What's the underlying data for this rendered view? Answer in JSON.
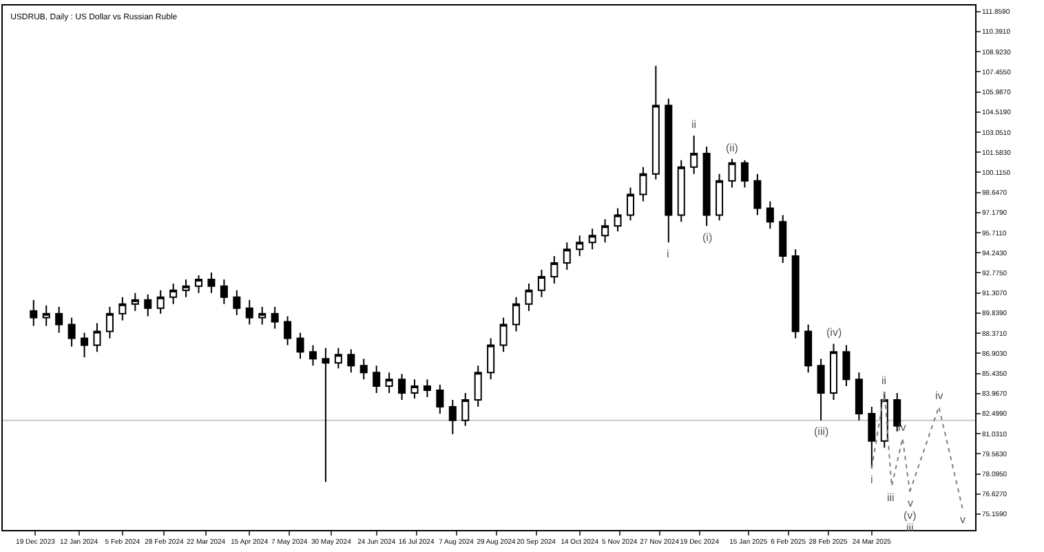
{
  "chart_data": {
    "type": "candlestick",
    "title": "USDRUB, Daily : US Dollar vs Russian Ruble",
    "x": [
      "2023-12-18",
      "2023-12-25",
      "2024-01-01",
      "2024-01-08",
      "2024-01-15",
      "2024-01-22",
      "2024-01-29",
      "2024-02-05",
      "2024-02-12",
      "2024-02-19",
      "2024-02-26",
      "2024-03-04",
      "2024-03-11",
      "2024-03-18",
      "2024-03-25",
      "2024-04-01",
      "2024-04-08",
      "2024-04-15",
      "2024-04-22",
      "2024-04-29",
      "2024-05-06",
      "2024-05-13",
      "2024-05-20",
      "2024-05-27",
      "2024-06-03",
      "2024-06-10",
      "2024-06-17",
      "2024-06-24",
      "2024-07-01",
      "2024-07-08",
      "2024-07-15",
      "2024-07-22",
      "2024-07-29",
      "2024-08-05",
      "2024-08-12",
      "2024-08-19",
      "2024-08-26",
      "2024-09-02",
      "2024-09-09",
      "2024-09-16",
      "2024-09-23",
      "2024-09-30",
      "2024-10-07",
      "2024-10-14",
      "2024-10-21",
      "2024-10-28",
      "2024-11-04",
      "2024-11-11",
      "2024-11-18",
      "2024-11-25",
      "2024-12-02",
      "2024-12-09",
      "2024-12-16",
      "2024-12-23",
      "2024-12-30",
      "2025-01-06",
      "2025-01-13",
      "2025-01-20",
      "2025-01-27",
      "2025-02-03",
      "2025-02-10",
      "2025-02-17",
      "2025-02-24",
      "2025-03-03",
      "2025-03-10",
      "2025-03-17",
      "2025-03-24",
      "2025-03-31",
      "2025-04-07"
    ],
    "ohlc": [
      [
        90.0,
        90.8,
        88.9,
        89.5
      ],
      [
        89.5,
        90.4,
        88.9,
        89.8
      ],
      [
        89.8,
        90.3,
        88.4,
        89.0
      ],
      [
        89.0,
        89.5,
        87.4,
        88.0
      ],
      [
        88.0,
        88.4,
        86.6,
        87.5
      ],
      [
        87.5,
        89.1,
        87.0,
        88.5
      ],
      [
        88.5,
        90.3,
        88.0,
        89.8
      ],
      [
        89.8,
        91.0,
        89.3,
        90.5
      ],
      [
        90.5,
        91.3,
        90.0,
        90.8
      ],
      [
        90.8,
        91.2,
        89.6,
        90.2
      ],
      [
        90.2,
        91.5,
        89.8,
        91.0
      ],
      [
        91.0,
        92.0,
        90.5,
        91.5
      ],
      [
        91.5,
        92.3,
        91.0,
        91.8
      ],
      [
        91.8,
        92.6,
        91.3,
        92.3
      ],
      [
        92.3,
        92.8,
        91.3,
        91.8
      ],
      [
        91.8,
        92.3,
        90.5,
        91.0
      ],
      [
        91.0,
        91.5,
        89.7,
        90.2
      ],
      [
        90.2,
        90.8,
        89.0,
        89.5
      ],
      [
        89.5,
        90.3,
        89.0,
        89.8
      ],
      [
        89.8,
        90.3,
        88.7,
        89.2
      ],
      [
        89.2,
        89.6,
        87.5,
        88.0
      ],
      [
        88.0,
        88.4,
        86.5,
        87.0
      ],
      [
        87.0,
        87.5,
        86.0,
        86.5
      ],
      [
        86.5,
        87.3,
        77.5,
        86.2
      ],
      [
        86.2,
        87.3,
        85.8,
        86.8
      ],
      [
        86.8,
        87.2,
        85.5,
        86.0
      ],
      [
        86.0,
        86.5,
        85.0,
        85.5
      ],
      [
        85.5,
        86.0,
        84.0,
        84.5
      ],
      [
        84.5,
        85.5,
        84.0,
        85.0
      ],
      [
        85.0,
        85.4,
        83.5,
        84.0
      ],
      [
        84.0,
        85.0,
        83.6,
        84.5
      ],
      [
        84.5,
        85.0,
        83.7,
        84.2
      ],
      [
        84.2,
        84.6,
        82.5,
        83.0
      ],
      [
        83.0,
        83.5,
        81.0,
        82.0
      ],
      [
        82.0,
        84.0,
        81.6,
        83.5
      ],
      [
        83.5,
        86.0,
        83.0,
        85.5
      ],
      [
        85.5,
        88.0,
        85.0,
        87.5
      ],
      [
        87.5,
        89.5,
        87.0,
        89.0
      ],
      [
        89.0,
        91.0,
        88.5,
        90.5
      ],
      [
        90.5,
        92.0,
        90.0,
        91.5
      ],
      [
        91.5,
        93.0,
        91.0,
        92.5
      ],
      [
        92.5,
        94.0,
        92.0,
        93.5
      ],
      [
        93.5,
        95.0,
        93.0,
        94.5
      ],
      [
        94.5,
        95.5,
        94.0,
        95.0
      ],
      [
        95.0,
        96.0,
        94.5,
        95.5
      ],
      [
        95.5,
        96.7,
        95.0,
        96.2
      ],
      [
        96.2,
        97.5,
        95.8,
        97.0
      ],
      [
        97.0,
        99.0,
        96.6,
        98.5
      ],
      [
        98.5,
        100.5,
        98.0,
        100.0
      ],
      [
        100.0,
        107.9,
        99.6,
        105.0
      ],
      [
        105.0,
        105.5,
        95.0,
        97.0
      ],
      [
        97.0,
        101.0,
        96.5,
        100.5
      ],
      [
        100.5,
        102.8,
        100.0,
        101.5
      ],
      [
        101.5,
        102.0,
        96.2,
        97.0
      ],
      [
        97.0,
        100.0,
        96.6,
        99.5
      ],
      [
        99.5,
        101.1,
        99.0,
        100.8
      ],
      [
        100.8,
        101.0,
        99.0,
        99.5
      ],
      [
        99.5,
        100.0,
        97.0,
        97.5
      ],
      [
        97.5,
        98.0,
        96.0,
        96.5
      ],
      [
        96.5,
        97.0,
        93.5,
        94.0
      ],
      [
        94.0,
        94.5,
        88.0,
        88.5
      ],
      [
        88.5,
        89.0,
        85.5,
        86.0
      ],
      [
        86.0,
        86.5,
        82.0,
        84.0
      ],
      [
        84.0,
        87.6,
        83.5,
        87.0
      ],
      [
        87.0,
        87.5,
        84.5,
        85.0
      ],
      [
        85.0,
        85.5,
        82.0,
        82.5
      ],
      [
        82.5,
        83.0,
        78.5,
        80.5
      ],
      [
        80.5,
        84.1,
        80.0,
        83.5
      ],
      [
        83.5,
        84.0,
        81.2,
        81.6
      ]
    ],
    "color": "#000000",
    "xlim": [
      "2023-12-01",
      "2025-05-20"
    ],
    "series": [
      {
        "type": "line",
        "color": "#808080",
        "line_style": "dotted",
        "x": [
          "2025-03-24",
          "2025-03-31",
          "2025-04-04",
          "2025-04-10",
          "2025-04-14"
        ],
        "values": [
          78.5,
          84.1,
          77.2,
          80.7,
          76.8
        ]
      },
      {
        "type": "line",
        "color": "#808080",
        "line_style": "dotted",
        "x": [
          "2025-04-14",
          "2025-04-30",
          "2025-05-13"
        ],
        "values": [
          76.8,
          83.0,
          75.6
        ]
      }
    ],
    "xticks": [
      {
        "value": "2023-12-19",
        "label": "19 Dec 2023"
      },
      {
        "value": "2024-01-12",
        "label": "12 Jan 2024"
      },
      {
        "value": "2024-02-05",
        "label": "5 Feb 2024"
      },
      {
        "value": "2024-02-28",
        "label": "28 Feb 2024"
      },
      {
        "value": "2024-03-22",
        "label": "22 Mar 2024"
      },
      {
        "value": "2024-04-15",
        "label": "15 Apr 2024"
      },
      {
        "value": "2024-05-07",
        "label": "7 May 2024"
      },
      {
        "value": "2024-05-30",
        "label": "30 May 2024"
      },
      {
        "value": "2024-06-24",
        "label": "24 Jun 2024"
      },
      {
        "value": "2024-07-16",
        "label": "16 Jul 2024"
      },
      {
        "value": "2024-08-07",
        "label": "7 Aug 2024"
      },
      {
        "value": "2024-08-29",
        "label": "29 Aug 2024"
      },
      {
        "value": "2024-09-20",
        "label": "20 Sep 2024"
      },
      {
        "value": "2024-10-14",
        "label": "14 Oct 2024"
      },
      {
        "value": "2024-11-05",
        "label": "5 Nov 2024"
      },
      {
        "value": "2024-11-27",
        "label": "27 Nov 2024"
      },
      {
        "value": "2024-12-19",
        "label": "19 Dec 2024"
      },
      {
        "value": "2025-01-15",
        "label": "15 Jan 2025"
      },
      {
        "value": "2025-02-06",
        "label": "6 Feb 2025"
      },
      {
        "value": "2025-02-28",
        "label": "28 Feb 2025"
      },
      {
        "value": "2025-03-24",
        "label": "24 Mar 2025"
      }
    ],
    "ylim": [
      74.0,
      112.3
    ],
    "yticks": [
      {
        "value": 111.859,
        "label": "111.8590"
      },
      {
        "value": 110.391,
        "label": "110.3910"
      },
      {
        "value": 108.923,
        "label": "108.9230"
      },
      {
        "value": 107.455,
        "label": "107.4550"
      },
      {
        "value": 105.987,
        "label": "105.9870"
      },
      {
        "value": 104.519,
        "label": "104.5190"
      },
      {
        "value": 103.051,
        "label": "103.0510"
      },
      {
        "value": 101.583,
        "label": "101.5830"
      },
      {
        "value": 100.115,
        "label": "100.1150"
      },
      {
        "value": 98.647,
        "label": "98.6470"
      },
      {
        "value": 97.179,
        "label": "97.1790"
      },
      {
        "value": 95.711,
        "label": "95.7110"
      },
      {
        "value": 94.243,
        "label": "94.2430"
      },
      {
        "value": 92.775,
        "label": "92.7750"
      },
      {
        "value": 91.307,
        "label": "91.3070"
      },
      {
        "value": 89.839,
        "label": "89.8390"
      },
      {
        "value": 88.371,
        "label": "88.3710"
      },
      {
        "value": 86.903,
        "label": "86.9030"
      },
      {
        "value": 85.435,
        "label": "85.4350"
      },
      {
        "value": 83.967,
        "label": "83.9670"
      },
      {
        "value": 82.499,
        "label": "82.4990"
      },
      {
        "value": 81.031,
        "label": "81.0310"
      },
      {
        "value": 79.563,
        "label": "79.5630"
      },
      {
        "value": 78.095,
        "label": "78.0950"
      },
      {
        "value": 76.627,
        "label": "76.6270"
      },
      {
        "value": 75.159,
        "label": "75.1590"
      }
    ],
    "ref_lines": [
      {
        "axis": "y",
        "value": 82.0,
        "label": null,
        "color": "#c8c8c8"
      }
    ],
    "annotations": [
      {
        "text": "i",
        "x": "2024-12-02",
        "y": 95.0
      },
      {
        "text": "ii",
        "x": "2024-12-16",
        "y": 102.8
      },
      {
        "text": "(i)",
        "x": "2024-12-23",
        "y": 96.2
      },
      {
        "text": "(ii)",
        "x": "2025-01-06",
        "y": 101.1
      },
      {
        "text": "(iii)",
        "x": "2025-02-24",
        "y": 82.0
      },
      {
        "text": "(iv)",
        "x": "2025-03-03",
        "y": 87.6
      },
      {
        "text": "i",
        "x": "2025-03-24",
        "y": 78.5
      },
      {
        "text": "ii",
        "x": "2025-03-31",
        "y": 84.1
      },
      {
        "text": "iii",
        "x": "2025-04-04",
        "y": 77.2
      },
      {
        "text": "iv",
        "x": "2025-04-10",
        "y": 80.7
      },
      {
        "text": "v",
        "x": "2025-04-14",
        "y": 76.8
      },
      {
        "text": "(v)",
        "x": "2025-04-14",
        "y": 76.8
      },
      {
        "text": "iii",
        "x": "2025-04-14",
        "y": 76.8
      },
      {
        "text": "iv",
        "x": "2025-04-30",
        "y": 83.0
      },
      {
        "text": "v",
        "x": "2025-05-13",
        "y": 75.6
      }
    ],
    "grid": false,
    "legend": false
  }
}
